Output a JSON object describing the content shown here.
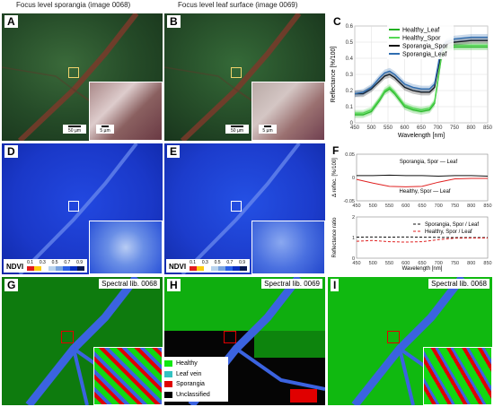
{
  "headers": {
    "left": "Focus level sporangia (image 0068)",
    "middle": "Focus level leaf surface (image 0069)"
  },
  "panel_letters": [
    "A",
    "B",
    "C",
    "D",
    "E",
    "F",
    "G",
    "H",
    "I"
  ],
  "scale_bars": {
    "a_main": "50 µm",
    "a_inset": "5 µm",
    "b_main": "50 µm",
    "b_inset": "5 µm"
  },
  "ndvi_legend": {
    "label": "NDVI",
    "ticks": [
      "0.1",
      "0.3",
      "0.5",
      "0.7",
      "0.9"
    ],
    "colors": [
      "#e31a1c",
      "#fecc0e",
      "#ffffff",
      "#b9d3ee",
      "#7aa4e0",
      "#2b60e6",
      "#0a2fc2",
      "#07174f"
    ]
  },
  "spectral_lib_labels": {
    "g": "Spectral lib. 0068",
    "h": "Spectral lib. 0069",
    "i": "Spectral lib. 0068"
  },
  "class_legend": [
    {
      "label": "Healthy",
      "color": "#11e811"
    },
    {
      "label": "Leaf vein",
      "color": "#33c2c2"
    },
    {
      "label": "Sporangia",
      "color": "#e00000"
    },
    {
      "label": "Unclassified",
      "color": "#000000"
    }
  ],
  "chart_data": [
    {
      "type": "line",
      "panel": "C",
      "xlabel": "Wavelength [nm]",
      "ylabel": "Reflectance [%/100]",
      "xlim": [
        450,
        850
      ],
      "ylim": [
        0,
        0.6
      ],
      "xticks": [
        450,
        500,
        550,
        600,
        650,
        700,
        750,
        800,
        850
      ],
      "yticks": [
        0.0,
        0.1,
        0.2,
        0.3,
        0.4,
        0.5,
        0.6
      ],
      "yticklabels": [
        "0",
        "0.1",
        "0.2",
        "0.3",
        "0.4",
        "0.5",
        "0.6"
      ],
      "grid": true,
      "legend_position": "top-right",
      "x": [
        450,
        475,
        500,
        525,
        540,
        555,
        570,
        585,
        600,
        625,
        650,
        675,
        690,
        700,
        710,
        725,
        750,
        800,
        850
      ],
      "series": [
        {
          "name": "Healthy_Leaf",
          "color": "#22b022",
          "values": [
            0.05,
            0.05,
            0.07,
            0.14,
            0.19,
            0.21,
            0.18,
            0.14,
            0.1,
            0.08,
            0.07,
            0.08,
            0.12,
            0.26,
            0.4,
            0.46,
            0.47,
            0.47,
            0.47
          ]
        },
        {
          "name": "Healthy_Spor",
          "color": "#55d855",
          "values": [
            0.06,
            0.06,
            0.08,
            0.15,
            0.2,
            0.22,
            0.19,
            0.15,
            0.11,
            0.09,
            0.08,
            0.09,
            0.13,
            0.27,
            0.41,
            0.47,
            0.48,
            0.48,
            0.48
          ]
        },
        {
          "name": "Sporangia_Spor",
          "color": "#111111",
          "values": [
            0.18,
            0.18,
            0.21,
            0.26,
            0.29,
            0.3,
            0.28,
            0.25,
            0.22,
            0.2,
            0.19,
            0.19,
            0.22,
            0.33,
            0.44,
            0.49,
            0.5,
            0.51,
            0.51
          ]
        },
        {
          "name": "Sporangia_Leaf",
          "color": "#2f6db0",
          "values": [
            0.18,
            0.19,
            0.22,
            0.28,
            0.31,
            0.32,
            0.3,
            0.27,
            0.24,
            0.22,
            0.21,
            0.21,
            0.24,
            0.35,
            0.46,
            0.5,
            0.52,
            0.53,
            0.53
          ]
        }
      ]
    },
    {
      "type": "line",
      "panel": "F-top",
      "ylabel": "Δ reflec. [%/100]",
      "xlim": [
        450,
        850
      ],
      "ylim": [
        -0.05,
        0.05
      ],
      "xticks": [
        450,
        500,
        550,
        600,
        650,
        700,
        750,
        800,
        850
      ],
      "yticks": [
        0.05,
        0.0,
        -0.05
      ],
      "yticklabels": [
        "0.05",
        "0",
        "-0.05"
      ],
      "x": [
        450,
        500,
        550,
        600,
        650,
        700,
        750,
        800,
        850
      ],
      "annotations": [
        "Sporangia, Spor — Leaf",
        "Healthy, Spor — Leaf"
      ],
      "series": [
        {
          "name": "Sporangia, Spor — Leaf",
          "color": "#111111",
          "values": [
            0.004,
            0.004,
            0.005,
            0.004,
            0.004,
            0.003,
            0.004,
            0.004,
            0.003
          ]
        },
        {
          "name": "Healthy, Spor — Leaf",
          "color": "#e02020",
          "values": [
            -0.004,
            -0.012,
            -0.019,
            -0.02,
            -0.019,
            -0.01,
            -0.003,
            -0.002,
            -0.002
          ]
        }
      ]
    },
    {
      "type": "line",
      "panel": "F-bottom",
      "xlabel": "Wavelength [nm]",
      "ylabel": "Reflectance ratio",
      "xlim": [
        450,
        850
      ],
      "ylim": [
        0,
        2
      ],
      "xticks": [
        450,
        500,
        550,
        600,
        650,
        700,
        750,
        800,
        850
      ],
      "yticks": [
        0,
        1,
        2
      ],
      "yticklabels": [
        "0",
        "1",
        "2"
      ],
      "legend_position": "top-right",
      "x": [
        450,
        500,
        550,
        600,
        650,
        700,
        750,
        800,
        850
      ],
      "series": [
        {
          "name": "Sporangia, Spor / Leaf",
          "color": "#111111",
          "dash": true,
          "values": [
            1.02,
            1.03,
            1.02,
            1.03,
            1.02,
            1.01,
            1.0,
            1.0,
            1.0
          ]
        },
        {
          "name": "Healthy, Spor / Leaf",
          "color": "#e02020",
          "dash": true,
          "values": [
            0.82,
            0.86,
            0.8,
            0.78,
            0.8,
            0.9,
            0.97,
            0.98,
            0.98
          ]
        }
      ]
    }
  ]
}
